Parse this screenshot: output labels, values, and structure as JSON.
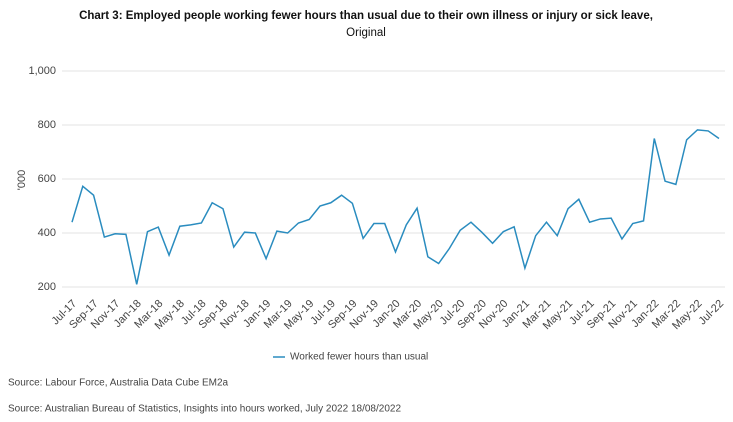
{
  "chart_data": {
    "type": "line",
    "title": "Chart 3: Employed people working fewer hours than usual due to their own illness or injury or sick leave,",
    "subtitle": "Original",
    "y_label": "'000",
    "categories": [
      "Jul-17",
      null,
      "Sep-17",
      null,
      "Nov-17",
      null,
      "Jan-18",
      null,
      "Mar-18",
      null,
      "May-18",
      null,
      "Jul-18",
      null,
      "Sep-18",
      null,
      "Nov-18",
      null,
      "Jan-19",
      null,
      "Mar-19",
      null,
      "May-19",
      null,
      "Jul-19",
      null,
      "Sep-19",
      null,
      "Nov-19",
      null,
      "Jan-20",
      null,
      "Mar-20",
      null,
      "May-20",
      null,
      "Jul-20",
      null,
      "Sep-20",
      null,
      "Nov-20",
      null,
      "Jan-21",
      null,
      "Mar-21",
      null,
      "May-21",
      null,
      "Jul-21",
      null,
      "Sep-21",
      null,
      "Nov-21",
      null,
      "Jan-22",
      null,
      "Mar-22",
      null,
      "May-22",
      null,
      "Jul-22"
    ],
    "series": [
      {
        "name": "Worked fewer hours than usual",
        "color": "#2a8cbf",
        "values": [
          440,
          573,
          540,
          385,
          397,
          395,
          210,
          405,
          422,
          318,
          425,
          430,
          437,
          512,
          490,
          348,
          403,
          400,
          305,
          407,
          400,
          437,
          450,
          500,
          512,
          540,
          510,
          380,
          435,
          435,
          330,
          430,
          492,
          312,
          287,
          343,
          410,
          440,
          403,
          362,
          405,
          423,
          270,
          390,
          440,
          390,
          490,
          525,
          440,
          452,
          455,
          378,
          435,
          445,
          750,
          592,
          580,
          745,
          782,
          778,
          750
        ]
      }
    ],
    "ylim": [
      200,
      1000
    ],
    "yticks": [
      200,
      400,
      600,
      800,
      {
        "value": 1000,
        "label": "1,000"
      }
    ],
    "grid": true,
    "legend": "bottom",
    "notes": [
      "Source: Labour Force, Australia Data Cube EM2a",
      "Source: Australian Bureau of Statistics, Insights into hours worked, July 2022 18/08/2022"
    ]
  }
}
